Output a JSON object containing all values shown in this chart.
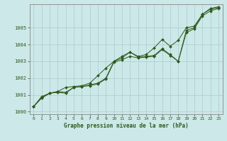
{
  "title": "Graphe pression niveau de la mer (hPa)",
  "bg_color": "#cce8e8",
  "line_color": "#2d5a1b",
  "grid_color": "#aacccc",
  "text_color": "#2d5a1b",
  "xlim": [
    -0.5,
    23.5
  ],
  "ylim": [
    999.85,
    1006.4
  ],
  "yticks": [
    1000,
    1001,
    1002,
    1003,
    1004,
    1005
  ],
  "xticks": [
    0,
    1,
    2,
    3,
    4,
    5,
    6,
    7,
    8,
    9,
    10,
    11,
    12,
    13,
    14,
    15,
    16,
    17,
    18,
    19,
    20,
    21,
    22,
    23
  ],
  "line1": [
    1000.3,
    1000.8,
    1001.1,
    1001.15,
    1001.1,
    1001.45,
    1001.5,
    1001.55,
    1001.65,
    1001.95,
    1002.95,
    1003.1,
    1003.3,
    1003.2,
    1003.25,
    1003.3,
    1003.7,
    1003.35,
    1003.0,
    1004.7,
    1004.95,
    1005.7,
    1006.0,
    1006.15
  ],
  "line2": [
    1000.3,
    1000.85,
    1001.1,
    1001.2,
    1001.15,
    1001.45,
    1001.5,
    1001.6,
    1001.7,
    1002.0,
    1003.0,
    1003.2,
    1003.55,
    1003.25,
    1003.3,
    1003.35,
    1003.75,
    1003.4,
    1003.0,
    1004.85,
    1005.0,
    1005.8,
    1006.1,
    1006.2
  ],
  "line3": [
    1000.3,
    1000.9,
    1001.1,
    1001.2,
    1001.45,
    1001.5,
    1001.55,
    1001.7,
    1002.15,
    1002.6,
    1003.0,
    1003.3,
    1003.55,
    1003.3,
    1003.4,
    1003.8,
    1004.3,
    1003.9,
    1004.25,
    1005.0,
    1005.1,
    1005.8,
    1006.15,
    1006.25
  ]
}
